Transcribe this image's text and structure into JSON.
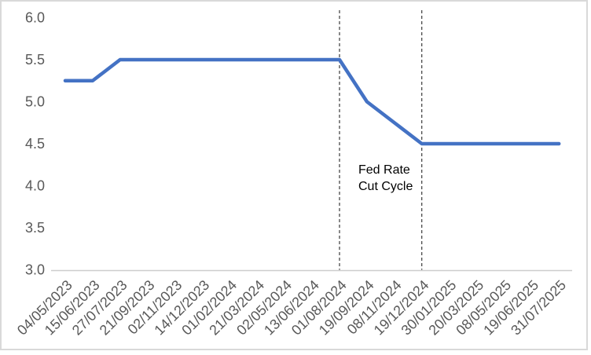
{
  "chart_data": {
    "type": "line",
    "categories": [
      "04/05/2023",
      "15/06/2023",
      "27/07/2023",
      "21/09/2023",
      "02/11/2023",
      "14/12/2023",
      "01/02/2024",
      "21/03/2024",
      "02/05/2024",
      "13/06/2024",
      "01/08/2024",
      "19/09/2024",
      "08/11/2024",
      "19/12/2024",
      "30/01/2025",
      "20/03/2025",
      "08/05/2025",
      "19/06/2025",
      "31/07/2025"
    ],
    "values": [
      5.25,
      5.25,
      5.5,
      5.5,
      5.5,
      5.5,
      5.5,
      5.5,
      5.5,
      5.5,
      5.5,
      5.0,
      4.75,
      4.5,
      4.5,
      4.5,
      4.5,
      4.5,
      4.5
    ],
    "ylim": [
      3.0,
      6.0
    ],
    "yticks": [
      6.0,
      5.5,
      5.0,
      4.5,
      4.0,
      3.5,
      3.0
    ],
    "ytick_labels": [
      "6.0",
      "5.5",
      "5.0",
      "4.5",
      "4.0",
      "3.5",
      "3.0"
    ],
    "grid": false,
    "legend_position": "none",
    "line_color": "#4472C4",
    "reference_lines": {
      "style": "dashed",
      "color": "#3A3A3A",
      "at_categories": [
        "01/08/2024",
        "19/12/2024"
      ]
    },
    "annotation": {
      "lines": [
        "Fed Rate",
        "Cut Cycle"
      ],
      "color": "#000000"
    }
  },
  "colors": {
    "axis_text": "#595959",
    "axis_line": "#CDCDCD",
    "frame_border": "#D9D9D9"
  }
}
